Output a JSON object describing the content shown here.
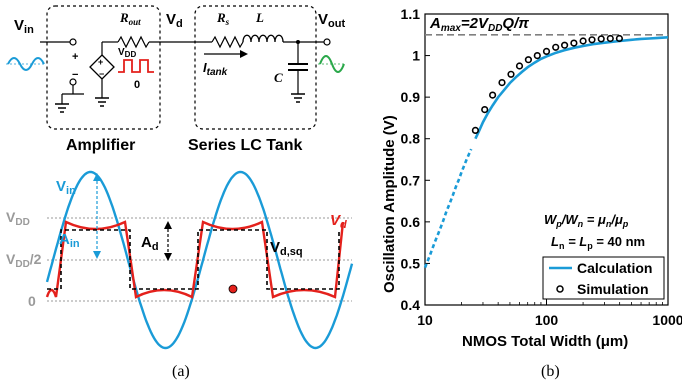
{
  "panel_a": {
    "caption": "(a)",
    "circuit": {
      "vin_label": "V",
      "vin_sub": "in",
      "rout_label": "R",
      "rout_sub": "out",
      "vdd_label": "V",
      "vdd_sub": "DD",
      "zero_label": "0",
      "vd_label": "V",
      "vd_sub": "d",
      "rs_label": "R",
      "rs_sub": "s",
      "l_label": "L",
      "c_label": "C",
      "vout_label": "V",
      "vout_sub": "out",
      "itank_label": "I",
      "itank_sub": "tank",
      "plus": "+",
      "minus": "−",
      "amplifier_caption": "Amplifier",
      "tank_caption": "Series LC Tank"
    },
    "waveform": {
      "vin_label": "V",
      "vin_sub": "in",
      "ain_label": "A",
      "ain_sub": "in",
      "ad_label": "A",
      "ad_sub": "d",
      "vd_label": "V",
      "vd_sub": "d",
      "vdsq_label": "V",
      "vdsq_sub": "d,sq",
      "level_vdd": "V",
      "level_vdd_sub": "DD",
      "level_half": "V",
      "level_half_sub": "DD",
      "level_half_suffix": "/2",
      "level_zero": "0",
      "colors": {
        "vin": "#1a9bd7",
        "vd": "#e4211c",
        "square": "#000000",
        "ref": "#9a9a9a"
      }
    }
  },
  "panel_b": {
    "caption": "(b)",
    "annotation_amax": "A",
    "annotation_amax_sub": "max",
    "annotation_amax_eq": "=2V",
    "annotation_amax_eq_sub": "DD",
    "annotation_amax_tail": "Q/π",
    "ratio_line": "W",
    "ratio_wp_sub": "p",
    "ratio_mid": "/W",
    "ratio_wn_sub": "n",
    "ratio_eq": " = μ",
    "ratio_un_sub": "n",
    "ratio_slash": "/μ",
    "ratio_up_sub": "p",
    "length_line_a": "L",
    "length_ln_sub": "n",
    "length_eq": " = L",
    "length_lp_sub": "p",
    "length_val": " = 40 nm"
  },
  "chart_data": {
    "type": "line",
    "xlabel": "NMOS Total Width (μm)",
    "ylabel": "Oscillation Amplitude (V)",
    "xscale": "log",
    "xlim": [
      10,
      1000
    ],
    "ylim": [
      0.4,
      1.1
    ],
    "xticks": [
      "10",
      "100",
      "1000"
    ],
    "yticks": [
      "0.4",
      "0.5",
      "0.6",
      "0.7",
      "0.8",
      "0.9",
      "1",
      "1.1"
    ],
    "legend_position": "lower-right",
    "grid": false,
    "reference_line": {
      "y": 1.05,
      "style": "dashed",
      "color": "#808080"
    },
    "series": [
      {
        "name": "Calculation",
        "kind": "line",
        "color": "#1a9bd7",
        "dashed_below_x": 25,
        "x": [
          10,
          11,
          12,
          13,
          14,
          15,
          16,
          17,
          18,
          19,
          20,
          22,
          24,
          26,
          28,
          30,
          33,
          36,
          40,
          45,
          50,
          56,
          63,
          70,
          80,
          90,
          100,
          120,
          140,
          170,
          200,
          250,
          300,
          400,
          500,
          600,
          700,
          800,
          1000
        ],
        "y": [
          0.49,
          0.52,
          0.55,
          0.575,
          0.6,
          0.625,
          0.645,
          0.665,
          0.685,
          0.702,
          0.72,
          0.75,
          0.775,
          0.8,
          0.82,
          0.84,
          0.862,
          0.88,
          0.9,
          0.918,
          0.934,
          0.948,
          0.961,
          0.972,
          0.983,
          0.992,
          0.998,
          1.007,
          1.013,
          1.019,
          1.023,
          1.028,
          1.031,
          1.035,
          1.038,
          1.04,
          1.041,
          1.042,
          1.044
        ]
      },
      {
        "name": "Simulation",
        "kind": "scatter",
        "color": "#000000",
        "x": [
          26,
          31,
          36,
          43,
          51,
          60,
          71,
          84,
          100,
          119,
          141,
          168,
          200,
          237,
          282,
          335,
          398
        ],
        "y": [
          0.82,
          0.87,
          0.905,
          0.935,
          0.955,
          0.975,
          0.99,
          1.0,
          1.01,
          1.02,
          1.025,
          1.03,
          1.035,
          1.038,
          1.04,
          1.041,
          1.041
        ]
      }
    ]
  }
}
